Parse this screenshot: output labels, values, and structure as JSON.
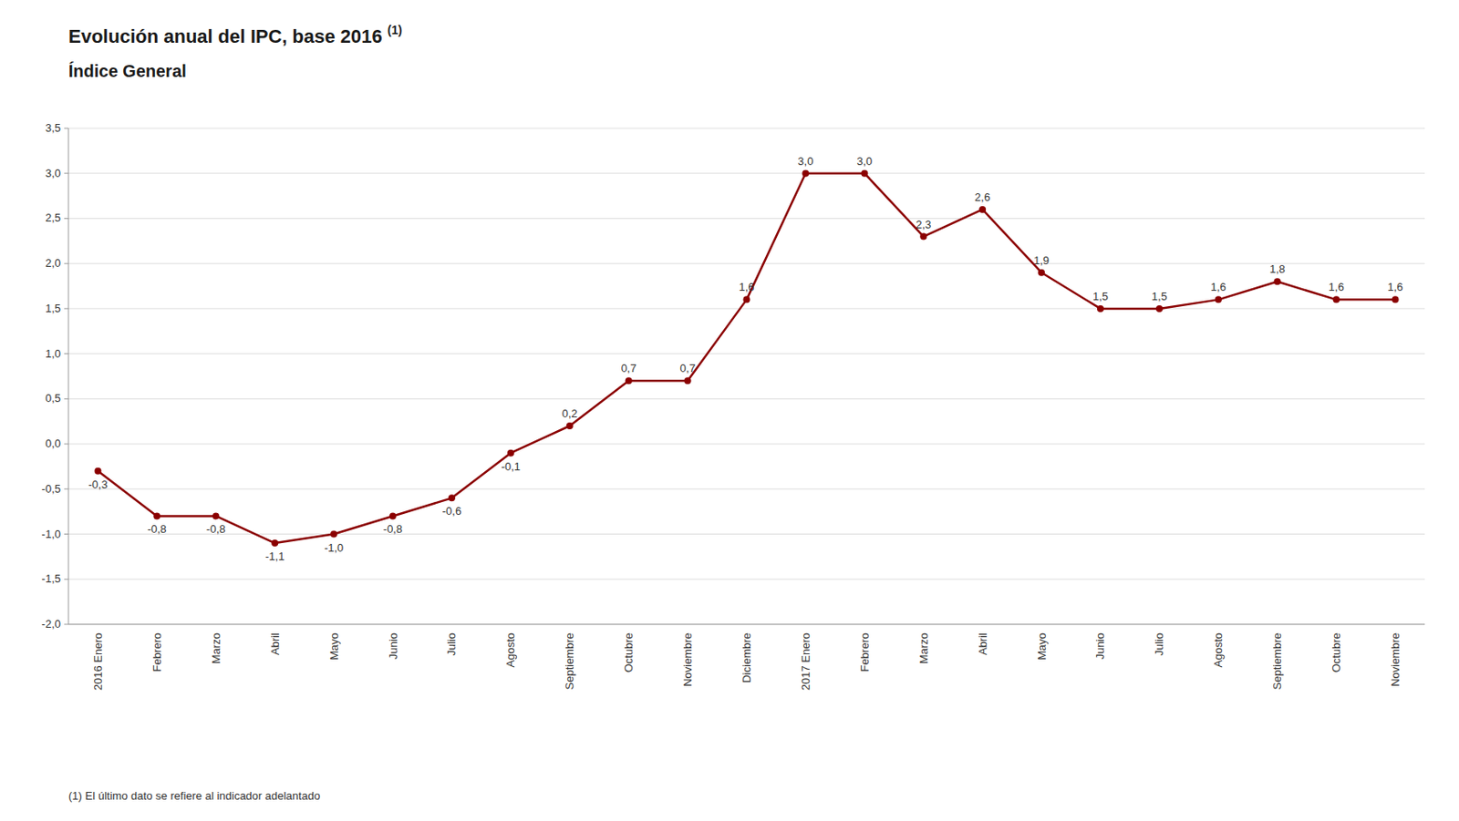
{
  "chart_data": {
    "type": "line",
    "title": "Evolución anual del IPC, base 2016",
    "subtitle": "Índice General",
    "annotations": [
      "(1)",
      "(1) El último dato se refiere al indicador adelantado"
    ],
    "categories": [
      "2016 Enero",
      "Febrero",
      "Marzo",
      "Abril",
      "Mayo",
      "Junio",
      "Julio",
      "Agosto",
      "Septiembre",
      "Octubre",
      "Noviembre",
      "Diciembre",
      "2017 Enero",
      "Febrero",
      "Marzo",
      "Abril",
      "Mayo",
      "Junio",
      "Julio",
      "Agosto",
      "Septiembre",
      "Octubre",
      "Noviembre"
    ],
    "values": [
      -0.3,
      -0.8,
      -0.8,
      -1.1,
      -1.0,
      -0.8,
      -0.6,
      -0.1,
      0.2,
      0.7,
      0.7,
      1.6,
      3.0,
      3.0,
      2.3,
      2.6,
      1.9,
      1.5,
      1.5,
      1.6,
      1.8,
      1.6,
      1.6
    ],
    "value_labels": [
      "-0,3",
      "-0,8",
      "-0,8",
      "-1,1",
      "-1,0",
      "-0,8",
      "-0,6",
      "-0,1",
      "0,2",
      "0,7",
      "0,7",
      "1,6",
      "3,0",
      "3,0",
      "2,3",
      "2,6",
      "1,9",
      "1,5",
      "1,5",
      "1,6",
      "1,8",
      "1,6",
      "1,6"
    ],
    "data_labels": true,
    "color": "#8B0000",
    "marker": "circle",
    "ylim": [
      -2.0,
      3.5
    ],
    "yticks": [
      {
        "value": -2.0,
        "label": "-2,0"
      },
      {
        "value": -1.5,
        "label": "-1,5"
      },
      {
        "value": -1.0,
        "label": "-1,0"
      },
      {
        "value": -0.5,
        "label": "-0,5"
      },
      {
        "value": 0.0,
        "label": "0,0"
      },
      {
        "value": 0.5,
        "label": "0,5"
      },
      {
        "value": 1.0,
        "label": "1,0"
      },
      {
        "value": 1.5,
        "label": "1,5"
      },
      {
        "value": 2.0,
        "label": "2,0"
      },
      {
        "value": 2.5,
        "label": "2,5"
      },
      {
        "value": 3.0,
        "label": "3,0"
      },
      {
        "value": 3.5,
        "label": "3,5"
      }
    ],
    "grid": true
  }
}
